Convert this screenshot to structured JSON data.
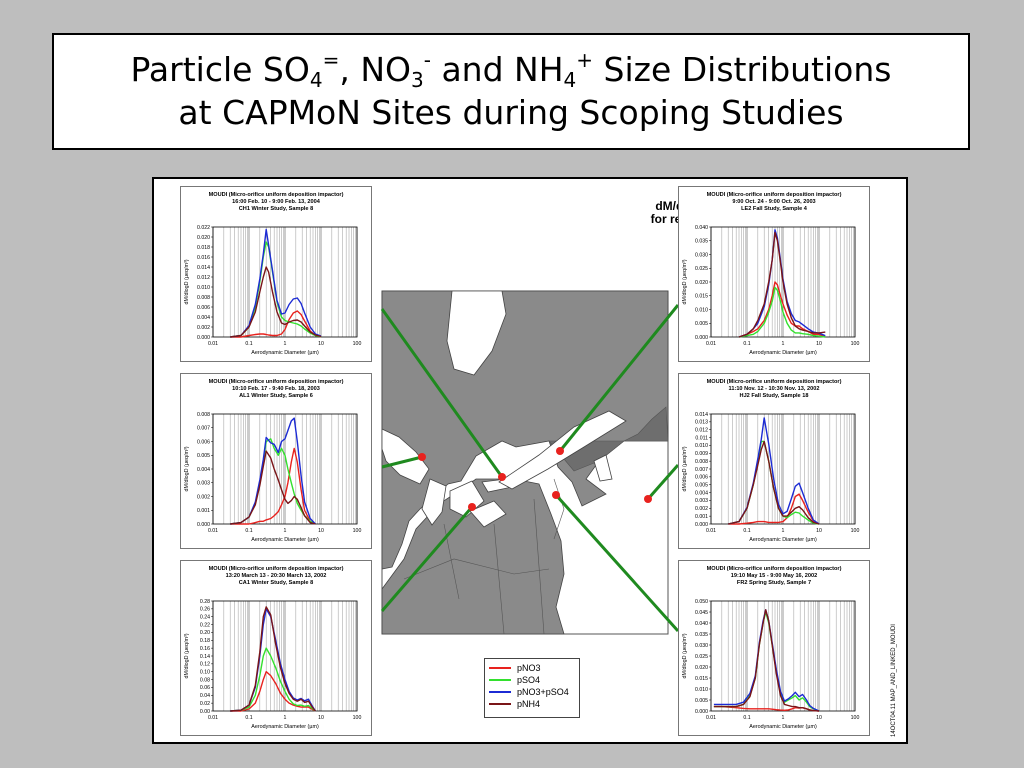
{
  "slide": {
    "title_line1_parts": [
      "Particle SO",
      "4",
      "=",
      ", NO",
      "3",
      "-",
      " and NH",
      "4",
      "+",
      " Size Distributions"
    ],
    "title_line2": "at CAPMoN Sites during Scoping Studies"
  },
  "figure": {
    "map_heading_line1": "dM/dlogD  Plots",
    "map_heading_line2": "for regional sites",
    "side_note": "14OCT04.11   MAP_AND_LINKED_MOUDI",
    "legend": [
      {
        "label": "pNO3",
        "color": "#e8221e"
      },
      {
        "label": "pSO4",
        "color": "#33e02e"
      },
      {
        "label": "pNO3+pSO4",
        "color": "#1c2bd4"
      },
      {
        "label": "pNH4",
        "color": "#7a1518"
      }
    ],
    "colors": {
      "map_land": "#8a8a8a",
      "map_water": "#ffffff",
      "connector": "#1f8a1f",
      "site": "#e8221e"
    }
  },
  "chart_data": [
    {
      "type": "line",
      "title": "MOUDI (Micro-orifice uniform deposition impactor)",
      "subtitle1": "16:00 Feb. 10 - 9:00 Feb. 13, 2004",
      "subtitle2": "CH1 Winter Study, Sample 8",
      "xlabel": "Aerodynamic Diameter (µm)",
      "ylabel": "dM/dlogD (µeq/m³)",
      "xscale": "log",
      "xlim": [
        0.01,
        100
      ],
      "ylim": [
        0,
        0.022
      ],
      "xticks": [
        "0.01",
        "0.1",
        "1",
        "10",
        "100"
      ],
      "yticks": [
        "0.000",
        "0.002",
        "0.004",
        "0.006",
        "0.008",
        "0.010",
        "0.012",
        "0.014",
        "0.016",
        "0.018",
        "0.020",
        "0.022"
      ],
      "x": [
        0.03,
        0.06,
        0.1,
        0.15,
        0.2,
        0.25,
        0.3,
        0.35,
        0.45,
        0.6,
        0.8,
        1.0,
        1.3,
        1.7,
        2.2,
        2.8,
        3.5,
        5.0,
        7.0,
        10.0
      ],
      "series": [
        {
          "name": "pNO3",
          "color": "#e8221e",
          "values": [
            0,
            0,
            0.0003,
            0.0005,
            0.0006,
            0.0006,
            0.0005,
            0.0004,
            0.0003,
            0.0003,
            0.0006,
            0.0015,
            0.0035,
            0.0048,
            0.0052,
            0.0045,
            0.0032,
            0.0012,
            0.0003,
            0.0001
          ]
        },
        {
          "name": "pSO4",
          "color": "#33e02e",
          "values": [
            0,
            0.0003,
            0.002,
            0.006,
            0.011,
            0.016,
            0.019,
            0.018,
            0.013,
            0.007,
            0.004,
            0.0033,
            0.003,
            0.0028,
            0.0026,
            0.0022,
            0.0016,
            0.0008,
            0.0003,
            0.0001
          ]
        },
        {
          "name": "pNO3+pSO4",
          "color": "#1c2bd4",
          "values": [
            0,
            0.0003,
            0.0023,
            0.0065,
            0.0116,
            0.0166,
            0.0215,
            0.0184,
            0.0133,
            0.0073,
            0.0046,
            0.0048,
            0.0065,
            0.0076,
            0.0078,
            0.0067,
            0.0048,
            0.002,
            0.0006,
            0.0002
          ]
        },
        {
          "name": "pNH4",
          "color": "#7a1518",
          "values": [
            0,
            0.0003,
            0.002,
            0.005,
            0.009,
            0.012,
            0.014,
            0.013,
            0.009,
            0.005,
            0.0028,
            0.0025,
            0.003,
            0.0033,
            0.0034,
            0.003,
            0.0022,
            0.001,
            0.0004,
            0.0001
          ]
        }
      ]
    },
    {
      "type": "line",
      "title": "MOUDI (Micro-orifice uniform deposition impactor)",
      "subtitle1": "10:10 Feb. 17 - 9:40 Feb. 18, 2003",
      "subtitle2": "AL1 Winter Study, Sample 6",
      "xlabel": "Aerodynamic Diameter (µm)",
      "ylabel": "dM/dlogD (µeq/m³)",
      "xscale": "log",
      "xlim": [
        0.01,
        100
      ],
      "ylim": [
        0,
        0.008
      ],
      "xticks": [
        "0.01",
        "0.1",
        "1",
        "10",
        "100"
      ],
      "yticks": [
        "0.000",
        "0.001",
        "0.002",
        "0.003",
        "0.004",
        "0.005",
        "0.006",
        "0.007",
        "0.008"
      ],
      "x": [
        0.03,
        0.06,
        0.1,
        0.15,
        0.2,
        0.25,
        0.3,
        0.4,
        0.5,
        0.65,
        0.8,
        1.0,
        1.2,
        1.5,
        1.8,
        2.2,
        2.8,
        3.5,
        5.0,
        7.0
      ],
      "series": [
        {
          "name": "pNO3",
          "color": "#e8221e",
          "values": [
            0,
            0,
            0,
            0.0001,
            0.0002,
            0.0002,
            0.0003,
            0.0004,
            0.0006,
            0.0009,
            0.0014,
            0.002,
            0.003,
            0.0045,
            0.0055,
            0.0045,
            0.0025,
            0.001,
            0.0002,
            0
          ]
        },
        {
          "name": "pSO4",
          "color": "#33e02e",
          "values": [
            0,
            0.0001,
            0.0005,
            0.0015,
            0.003,
            0.0045,
            0.006,
            0.0062,
            0.0055,
            0.005,
            0.0055,
            0.005,
            0.004,
            0.003,
            0.0022,
            0.0015,
            0.001,
            0.0006,
            0.0002,
            0
          ]
        },
        {
          "name": "pNO3+pSO4",
          "color": "#1c2bd4",
          "values": [
            0,
            0.0001,
            0.0005,
            0.0016,
            0.0032,
            0.0047,
            0.0063,
            0.0059,
            0.0058,
            0.0052,
            0.006,
            0.0062,
            0.0068,
            0.0075,
            0.0077,
            0.006,
            0.0035,
            0.0016,
            0.0004,
            0
          ]
        },
        {
          "name": "pNH4",
          "color": "#7a1518",
          "values": [
            0,
            0.0001,
            0.0005,
            0.0014,
            0.0028,
            0.0042,
            0.0053,
            0.0048,
            0.004,
            0.0032,
            0.0025,
            0.0018,
            0.0015,
            0.0017,
            0.002,
            0.0018,
            0.0012,
            0.0006,
            0.0001,
            0
          ]
        }
      ]
    },
    {
      "type": "line",
      "title": "MOUDI (Micro-orifice uniform deposition impactor)",
      "subtitle1": "13:20 March 13 - 20:30 March 13, 2002",
      "subtitle2": "CA1 Winter Study, Sample 8",
      "xlabel": "Aerodynamic Diameter (µm)",
      "ylabel": "dM/dlogD (µeq/m³)",
      "xscale": "log",
      "xlim": [
        0.01,
        100
      ],
      "ylim": [
        0,
        0.28
      ],
      "xticks": [
        "0.01",
        "0.1",
        "1",
        "10",
        "100"
      ],
      "yticks": [
        "0.00",
        "0.02",
        "0.04",
        "0.06",
        "0.08",
        "0.10",
        "0.12",
        "0.14",
        "0.16",
        "0.18",
        "0.20",
        "0.22",
        "0.24",
        "0.26",
        "0.28"
      ],
      "x": [
        0.03,
        0.06,
        0.1,
        0.15,
        0.2,
        0.25,
        0.3,
        0.4,
        0.55,
        0.75,
        1.0,
        1.3,
        1.7,
        2.2,
        2.8,
        3.5,
        4.5,
        5.5,
        7.0
      ],
      "series": [
        {
          "name": "pNO3",
          "color": "#e8221e",
          "values": [
            0,
            0,
            0.005,
            0.02,
            0.05,
            0.08,
            0.1,
            0.09,
            0.07,
            0.045,
            0.03,
            0.02,
            0.015,
            0.012,
            0.01,
            0.01,
            0.01,
            0.005,
            0
          ]
        },
        {
          "name": "pSO4",
          "color": "#33e02e",
          "values": [
            0,
            0.002,
            0.01,
            0.04,
            0.09,
            0.14,
            0.16,
            0.14,
            0.11,
            0.075,
            0.05,
            0.03,
            0.018,
            0.014,
            0.015,
            0.012,
            0.014,
            0.008,
            0
          ]
        },
        {
          "name": "pNO3+pSO4",
          "color": "#1c2bd4",
          "values": [
            0,
            0.002,
            0.015,
            0.06,
            0.14,
            0.22,
            0.26,
            0.24,
            0.18,
            0.12,
            0.08,
            0.05,
            0.033,
            0.028,
            0.032,
            0.026,
            0.03,
            0.015,
            0
          ]
        },
        {
          "name": "pNH4",
          "color": "#7a1518",
          "values": [
            0,
            0.002,
            0.015,
            0.065,
            0.15,
            0.24,
            0.265,
            0.245,
            0.17,
            0.11,
            0.07,
            0.045,
            0.03,
            0.025,
            0.03,
            0.022,
            0.025,
            0.012,
            0
          ]
        }
      ]
    },
    {
      "type": "line",
      "title": "MOUDI (Micro-orifice uniform deposition impactor)",
      "subtitle1": "9:00 Oct. 24 - 9:00 Oct. 26, 2003",
      "subtitle2": "LE2 Fall Study, Sample 4",
      "xlabel": "Aerodynamic Diameter (µm)",
      "ylabel": "dM/dlogD (µeq/m³)",
      "xscale": "log",
      "xlim": [
        0.01,
        100
      ],
      "ylim": [
        0,
        0.04
      ],
      "xticks": [
        "0.01",
        "0.1",
        "1",
        "10",
        "100"
      ],
      "yticks": [
        "0.000",
        "0.005",
        "0.010",
        "0.015",
        "0.020",
        "0.025",
        "0.030",
        "0.035",
        "0.040"
      ],
      "x": [
        0.06,
        0.1,
        0.15,
        0.2,
        0.3,
        0.4,
        0.5,
        0.6,
        0.7,
        0.85,
        1.0,
        1.3,
        1.7,
        2.2,
        2.8,
        3.5,
        5.0,
        7.0,
        10.0,
        15.0
      ],
      "series": [
        {
          "name": "pNO3",
          "color": "#e8221e",
          "values": [
            0,
            0.001,
            0.002,
            0.003,
            0.006,
            0.01,
            0.015,
            0.02,
            0.019,
            0.015,
            0.012,
            0.008,
            0.005,
            0.004,
            0.004,
            0.003,
            0.002,
            0.001,
            0.001,
            0
          ]
        },
        {
          "name": "pSO4",
          "color": "#33e02e",
          "values": [
            0,
            0.0005,
            0.001,
            0.002,
            0.005,
            0.009,
            0.013,
            0.018,
            0.017,
            0.013,
            0.009,
            0.005,
            0.0025,
            0.0015,
            0.0015,
            0.0012,
            0.001,
            0.0005,
            0.0003,
            0
          ]
        },
        {
          "name": "pNO3+pSO4",
          "color": "#1c2bd4",
          "values": [
            0,
            0.001,
            0.003,
            0.005,
            0.011,
            0.019,
            0.028,
            0.039,
            0.036,
            0.028,
            0.021,
            0.013,
            0.0085,
            0.006,
            0.0055,
            0.0045,
            0.003,
            0.0018,
            0.0014,
            0.0005
          ]
        },
        {
          "name": "pNH4",
          "color": "#7a1518",
          "values": [
            0,
            0.001,
            0.003,
            0.006,
            0.012,
            0.02,
            0.028,
            0.038,
            0.035,
            0.027,
            0.02,
            0.012,
            0.007,
            0.004,
            0.003,
            0.0025,
            0.002,
            0.0015,
            0.0015,
            0.0018
          ]
        }
      ]
    },
    {
      "type": "line",
      "title": "MOUDI (Micro-orifice uniform deposition impactor)",
      "subtitle1": "11:10 Nov. 12 - 10:30 Nov. 13, 2002",
      "subtitle2": "HJ2 Fall Study, Sample 18",
      "xlabel": "Aerodynamic Diameter (µm)",
      "ylabel": "dM/dlogD (µeq/m³)",
      "xscale": "log",
      "xlim": [
        0.01,
        100
      ],
      "ylim": [
        0,
        0.014
      ],
      "xticks": [
        "0.01",
        "0.1",
        "1",
        "10",
        "100"
      ],
      "yticks": [
        "0.000",
        "0.001",
        "0.002",
        "0.003",
        "0.004",
        "0.005",
        "0.006",
        "0.007",
        "0.008",
        "0.009",
        "0.010",
        "0.011",
        "0.012",
        "0.013",
        "0.014"
      ],
      "x": [
        0.03,
        0.06,
        0.1,
        0.15,
        0.2,
        0.25,
        0.3,
        0.4,
        0.55,
        0.75,
        1.0,
        1.3,
        1.7,
        2.2,
        2.8,
        3.5,
        5.0,
        7.0,
        10.0
      ],
      "series": [
        {
          "name": "pNO3",
          "color": "#e8221e",
          "values": [
            0,
            0,
            0.0001,
            0.0002,
            0.0003,
            0.0003,
            0.0003,
            0.0002,
            0.0002,
            0.0002,
            0.0003,
            0.0008,
            0.002,
            0.0035,
            0.0038,
            0.003,
            0.0015,
            0.0004,
            0
          ]
        },
        {
          "name": "pSO4",
          "color": "#33e02e",
          "values": [
            0,
            0.0003,
            0.002,
            0.005,
            0.008,
            0.0105,
            0.0105,
            0.008,
            0.0045,
            0.002,
            0.001,
            0.0008,
            0.0012,
            0.0015,
            0.0014,
            0.001,
            0.0005,
            0.0001,
            0
          ]
        },
        {
          "name": "pNO3+pSO4",
          "color": "#1c2bd4",
          "values": [
            0,
            0.0003,
            0.0021,
            0.0052,
            0.0083,
            0.0108,
            0.0135,
            0.0102,
            0.0057,
            0.0025,
            0.0013,
            0.0016,
            0.0032,
            0.0048,
            0.0052,
            0.004,
            0.002,
            0.0005,
            0
          ]
        },
        {
          "name": "pNH4",
          "color": "#7a1518",
          "values": [
            0,
            0.0003,
            0.002,
            0.005,
            0.0075,
            0.0095,
            0.0105,
            0.008,
            0.0045,
            0.002,
            0.001,
            0.001,
            0.0015,
            0.002,
            0.0022,
            0.0018,
            0.0008,
            0.0002,
            0
          ]
        }
      ]
    },
    {
      "type": "line",
      "title": "MOUDI (Micro-orifice uniform deposition impactor)",
      "subtitle1": "19:10 May 15 - 9:00 May 16, 2002",
      "subtitle2": "FR2 Spring Study, Sample 7",
      "xlabel": "Aerodynamic Diameter (µm)",
      "ylabel": "dM/dlogD (µeq/m³)",
      "xscale": "log",
      "xlim": [
        0.01,
        100
      ],
      "ylim": [
        0,
        0.05
      ],
      "xticks": [
        "0.01",
        "0.1",
        "1",
        "10",
        "100"
      ],
      "yticks": [
        "0.000",
        "0.005",
        "0.010",
        "0.015",
        "0.020",
        "0.025",
        "0.030",
        "0.035",
        "0.040",
        "0.045",
        "0.050"
      ],
      "x": [
        0.012,
        0.02,
        0.03,
        0.05,
        0.08,
        0.12,
        0.17,
        0.22,
        0.28,
        0.33,
        0.4,
        0.5,
        0.65,
        0.85,
        1.1,
        1.4,
        1.8,
        2.2,
        2.8,
        3.5,
        4.5,
        5.5,
        7.0,
        10.0
      ],
      "series": [
        {
          "name": "pNO3",
          "color": "#e8221e",
          "values": [
            0.002,
            0.002,
            0.0018,
            0.0015,
            0.0012,
            0.001,
            0.001,
            0.001,
            0.001,
            0.001,
            0.001,
            0.0008,
            0.0006,
            0.0004,
            0.0003,
            0.0005,
            0.001,
            0.0015,
            0.0013,
            0.0015,
            0.001,
            0.0005,
            0.0002,
            0
          ]
        },
        {
          "name": "pSO4",
          "color": "#33e02e",
          "values": [
            0.002,
            0.002,
            0.002,
            0.002,
            0.003,
            0.007,
            0.015,
            0.03,
            0.04,
            0.045,
            0.04,
            0.03,
            0.018,
            0.008,
            0.004,
            0.005,
            0.006,
            0.007,
            0.005,
            0.006,
            0.004,
            0.002,
            0.001,
            0
          ]
        },
        {
          "name": "pNO3+pSO4",
          "color": "#1c2bd4",
          "values": [
            0.003,
            0.003,
            0.003,
            0.003,
            0.004,
            0.008,
            0.016,
            0.031,
            0.041,
            0.046,
            0.041,
            0.031,
            0.019,
            0.009,
            0.0045,
            0.0055,
            0.007,
            0.0085,
            0.0065,
            0.0075,
            0.005,
            0.0025,
            0.0012,
            0
          ]
        },
        {
          "name": "pNH4",
          "color": "#7a1518",
          "values": [
            0.002,
            0.002,
            0.002,
            0.002,
            0.003,
            0.0065,
            0.015,
            0.03,
            0.04,
            0.046,
            0.041,
            0.03,
            0.017,
            0.007,
            0.003,
            0.0025,
            0.002,
            0.002,
            0.0015,
            0.0015,
            0.001,
            0.0005,
            0.0002,
            0
          ]
        }
      ]
    }
  ]
}
